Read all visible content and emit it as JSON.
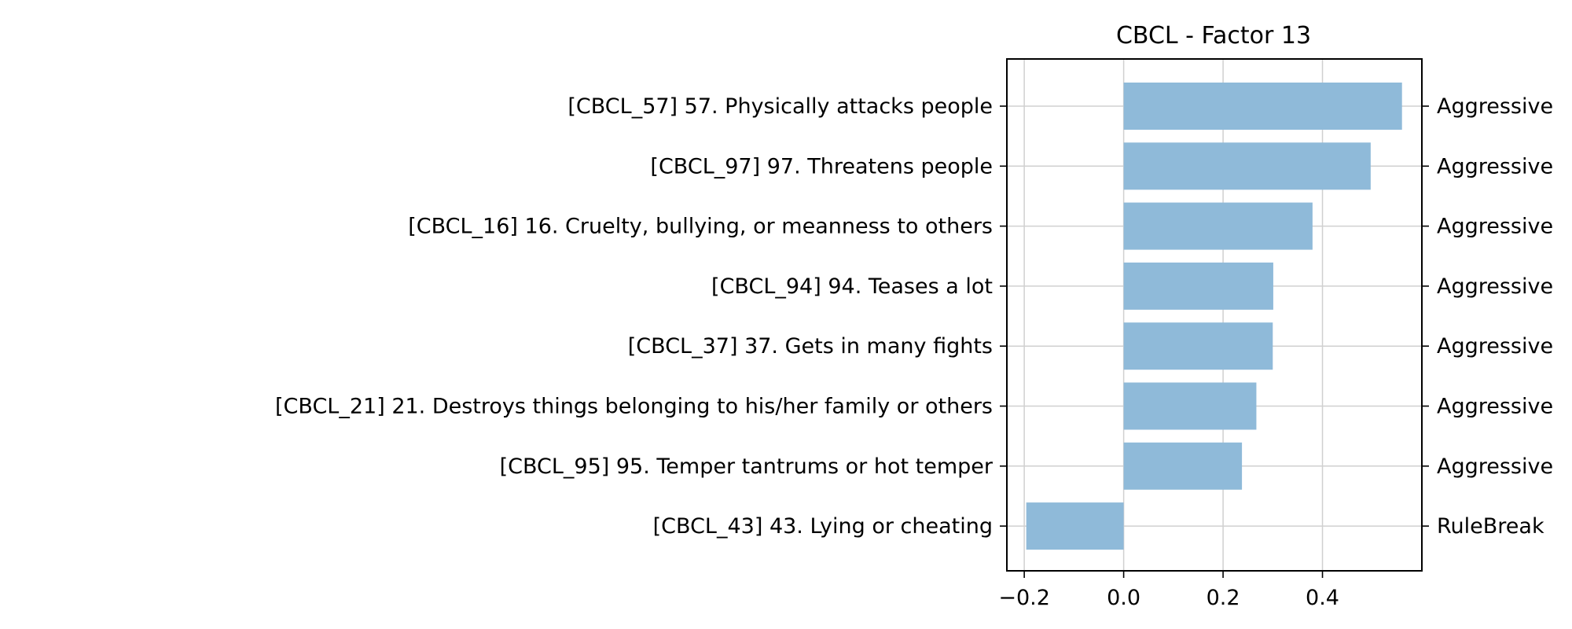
{
  "chart_data": {
    "type": "bar",
    "orientation": "horizontal",
    "title": "CBCL - Factor 13",
    "xlabel": "",
    "ylabel": "",
    "xlim": [
      -0.235,
      0.6
    ],
    "xticks": [
      -0.2,
      0.0,
      0.2,
      0.4
    ],
    "xtick_labels": [
      "−0.2",
      "0.0",
      "0.2",
      "0.4"
    ],
    "grid": true,
    "bar_color": "#8fbad9",
    "categories": [
      "[CBCL_57] 57. Physically attacks people",
      "[CBCL_97] 97. Threatens people",
      "[CBCL_16] 16. Cruelty, bullying, or meanness to others",
      "[CBCL_94] 94. Teases a lot",
      "[CBCL_37] 37. Gets in many fights",
      "[CBCL_21] 21. Destroys things belonging to his/her family or others",
      "[CBCL_95] 95. Temper tantrums or hot temper",
      "[CBCL_43] 43. Lying or cheating"
    ],
    "values": [
      0.56,
      0.497,
      0.38,
      0.301,
      0.3,
      0.267,
      0.238,
      -0.196
    ],
    "right_labels": [
      "Aggressive",
      "Aggressive",
      "Aggressive",
      "Aggressive",
      "Aggressive",
      "Aggressive",
      "Aggressive",
      "RuleBreak"
    ]
  }
}
